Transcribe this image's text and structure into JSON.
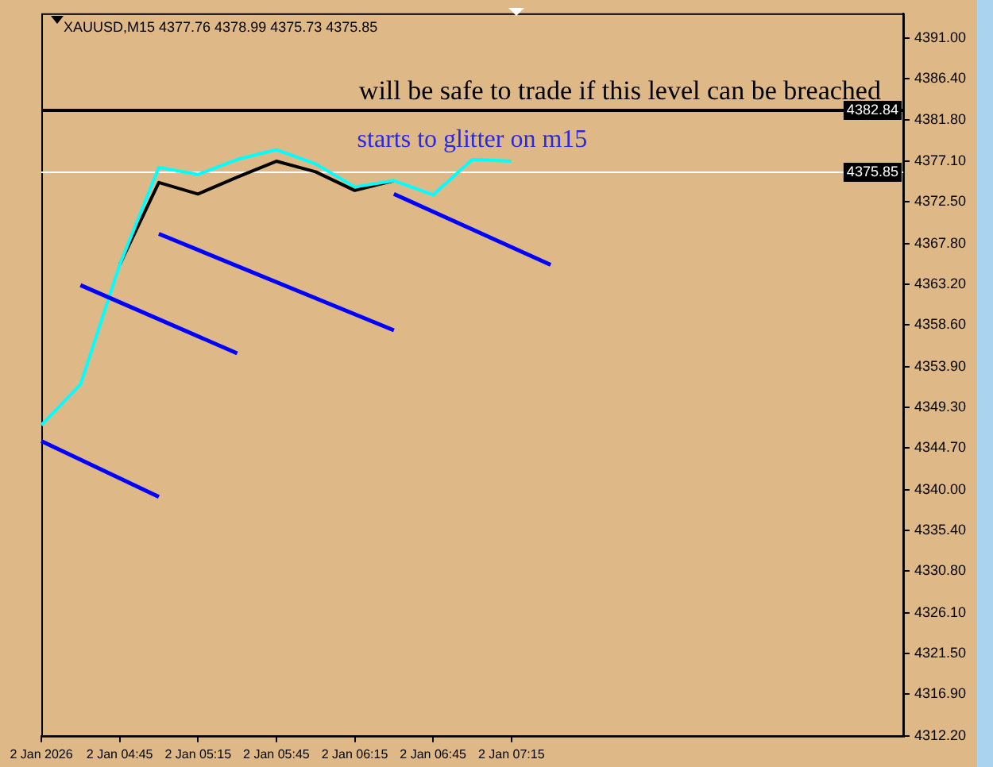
{
  "chart_data": {
    "type": "line",
    "title": "XAUUSD,M15 4377.76 4378.99 4375.73 4375.85",
    "annotations": [
      "will be safe to trade if this level can be breached",
      "starts to glitter on m15"
    ],
    "categories": [
      "2 Jan 2026",
      null,
      "2 Jan 04:45",
      null,
      "2 Jan 05:15",
      null,
      "2 Jan 05:45",
      null,
      "2 Jan 06:15",
      null,
      "2 Jan 06:45",
      null,
      "2 Jan 07:15",
      null,
      null,
      null,
      null,
      null,
      null,
      null,
      null,
      null,
      null
    ],
    "series": [
      {
        "color": "#000000",
        "values": [
          null,
          null,
          4365.4,
          4374.7,
          4373.4,
          4375.3,
          4377.1,
          4375.9,
          4373.8,
          4374.9,
          null,
          null,
          null,
          null,
          null,
          null,
          null,
          null,
          null,
          null,
          null,
          null,
          null
        ]
      },
      {
        "color": "#00ffff",
        "values": [
          4347.3,
          4351.9,
          4365.4,
          4376.4,
          4375.6,
          4377.3,
          4378.4,
          4376.8,
          4374.2,
          4374.9,
          4373.3,
          4377.3,
          4377.1,
          null,
          null,
          null,
          null,
          null,
          null,
          null,
          null,
          null,
          null
        ]
      },
      {
        "color": "#0000ff",
        "values": [
          4345.5,
          null,
          null,
          4339.2,
          null,
          null,
          null,
          null,
          null,
          null,
          null,
          null,
          null,
          null,
          null,
          null,
          null,
          null,
          null,
          null,
          null,
          null,
          null
        ]
      },
      {
        "color": "#0000ff",
        "values": [
          null,
          4363.1,
          null,
          null,
          null,
          4355.4,
          null,
          null,
          null,
          null,
          null,
          null,
          null,
          null,
          null,
          null,
          null,
          null,
          null,
          null,
          null,
          null,
          null
        ]
      },
      {
        "color": "#0000ff",
        "values": [
          null,
          null,
          null,
          4368.9,
          null,
          null,
          null,
          null,
          null,
          4358.0,
          null,
          null,
          null,
          null,
          null,
          null,
          null,
          null,
          null,
          null,
          null,
          null,
          null
        ]
      },
      {
        "color": "#0000ff",
        "values": [
          null,
          null,
          null,
          null,
          null,
          null,
          null,
          null,
          null,
          4373.4,
          null,
          null,
          null,
          4365.4,
          null,
          null,
          null,
          null,
          null,
          null,
          null,
          null,
          null
        ]
      }
    ],
    "ref_lines": [
      {
        "axis": "y",
        "value": 4382.84,
        "label": "4382.84",
        "color": "#000000"
      },
      {
        "axis": "y",
        "value": 4375.85,
        "label": "4375.85",
        "color": "#ffffff"
      }
    ],
    "ylim": [
      4312.2,
      4393.8
    ],
    "yticks": [
      {
        "value": 4312.2,
        "label": "4312.20"
      },
      {
        "value": 4316.9,
        "label": "4316.90"
      },
      {
        "value": 4321.5,
        "label": "4321.50"
      },
      {
        "value": 4326.1,
        "label": "4326.10"
      },
      {
        "value": 4330.8,
        "label": "4330.80"
      },
      {
        "value": 4335.4,
        "label": "4335.40"
      },
      {
        "value": 4340,
        "label": "4340.00"
      },
      {
        "value": 4344.7,
        "label": "4344.70"
      },
      {
        "value": 4349.3,
        "label": "4349.30"
      },
      {
        "value": 4353.9,
        "label": "4353.90"
      },
      {
        "value": 4358.6,
        "label": "4358.60"
      },
      {
        "value": 4363.2,
        "label": "4363.20"
      },
      {
        "value": 4367.8,
        "label": "4367.80"
      },
      {
        "value": 4372.5,
        "label": "4372.50"
      },
      {
        "value": 4377.1,
        "label": "4377.10"
      },
      {
        "value": 4381.8,
        "label": "4381.80"
      },
      {
        "value": 4386.4,
        "label": "4386.40"
      },
      {
        "value": 4391,
        "label": "4391.00"
      }
    ],
    "grid": false,
    "legend": false,
    "marker": "none",
    "line_style": "solid"
  }
}
